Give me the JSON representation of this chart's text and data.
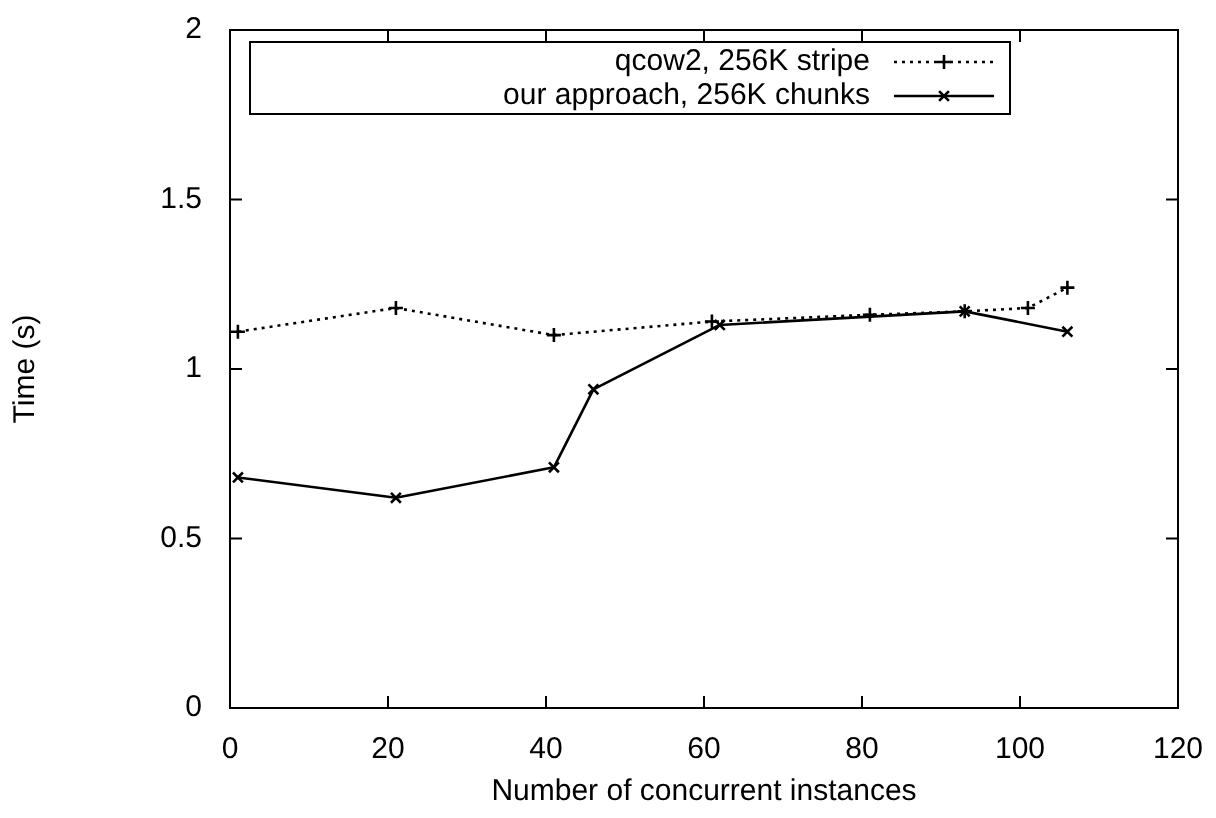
{
  "chart_data": {
    "type": "line",
    "xlabel": "Number of concurrent instances",
    "ylabel": "Time (s)",
    "xlim": [
      0,
      120
    ],
    "xticks": [
      0,
      20,
      40,
      60,
      80,
      100,
      120
    ],
    "ylim": [
      0,
      2
    ],
    "yticks": [
      0,
      0.5,
      1,
      1.5,
      2
    ],
    "grid": false,
    "legend": "top",
    "series": [
      {
        "name": "qcow2, 256K stripe",
        "color": "#000000",
        "marker": "plus",
        "line_style": "dotted",
        "x": [
          1,
          21,
          41,
          61,
          81,
          93,
          101,
          106
        ],
        "values": [
          1.11,
          1.18,
          1.1,
          1.14,
          1.16,
          1.17,
          1.18,
          1.24
        ]
      },
      {
        "name": "our approach, 256K chunks",
        "color": "#000000",
        "marker": "cross",
        "line_style": "solid",
        "x": [
          1,
          21,
          41,
          46,
          62,
          93,
          106
        ],
        "values": [
          0.68,
          0.62,
          0.71,
          0.94,
          1.13,
          1.17,
          1.11
        ]
      }
    ]
  }
}
